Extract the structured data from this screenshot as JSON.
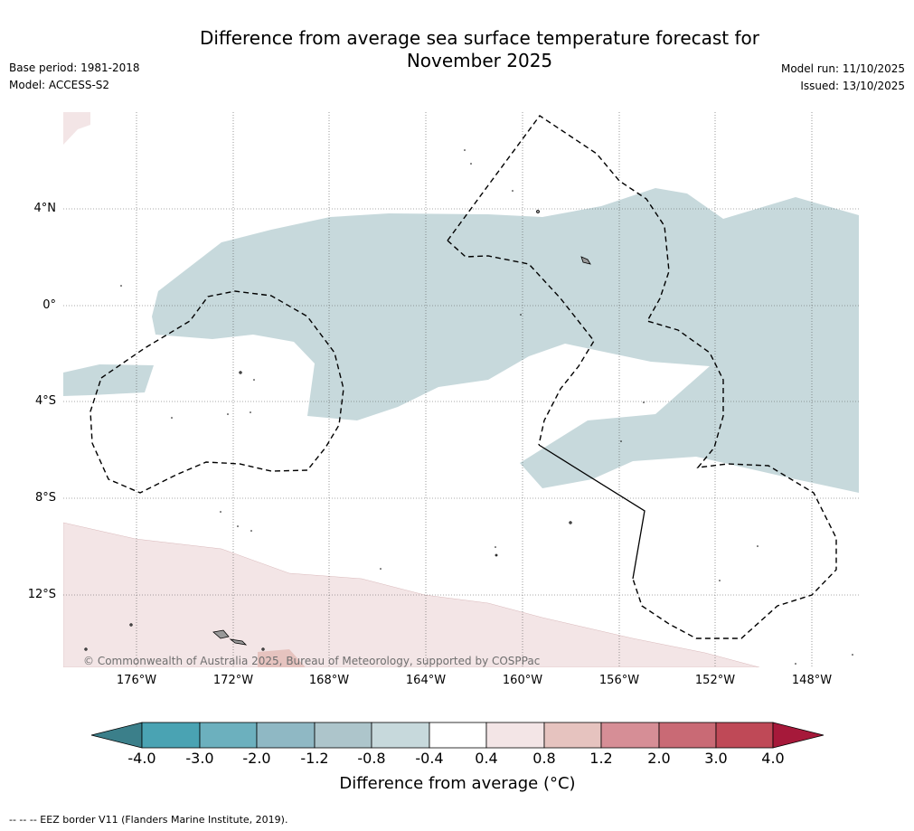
{
  "title": {
    "line1": "Difference from average sea surface temperature forecast for",
    "line2": "November 2025"
  },
  "meta": {
    "base_period": "Base period: 1981-2018",
    "model": "Model: ACCESS-S2",
    "model_run": "Model run: 11/10/2025",
    "issued": "Issued: 13/10/2025"
  },
  "map": {
    "lat_labels": [
      "4°N",
      "0°",
      "4°S",
      "8°S",
      "12°S"
    ],
    "lon_labels": [
      "176°W",
      "172°W",
      "168°W",
      "164°W",
      "160°W",
      "156°W",
      "152°W",
      "148°W"
    ],
    "copyright": "© Commonwealth of Australia 2025, Bureau of Meteorology, supported by COSPPac"
  },
  "colorbar": {
    "title": "Difference from average (°C)",
    "ticks": [
      "-4.0",
      "-3.0",
      "-2.0",
      "-1.2",
      "-0.8",
      "-0.4",
      "0.4",
      "0.8",
      "1.2",
      "2.0",
      "3.0",
      "4.0"
    ],
    "colors": {
      "below_min": "#3b7f8a",
      "bins": [
        "#4aa3b3",
        "#6cb0be",
        "#8fb8c4",
        "#adc5cb",
        "#c7d9dc",
        "#ffffff",
        "#f3e5e6",
        "#e6c3bf",
        "#d68e96",
        "#c96a75",
        "#bf4957"
      ],
      "above_max": "#a6193a"
    }
  },
  "colors": {
    "cool_anomaly": "#c7d9dc",
    "warm_anomaly": "#f3e5e6",
    "warm_anomaly_strong": "#e6c3bf",
    "eez_border": "#000000",
    "land": "#999999"
  },
  "footnote": "-- -- -- EEZ border V11 (Flanders Marine Institute, 2019)."
}
